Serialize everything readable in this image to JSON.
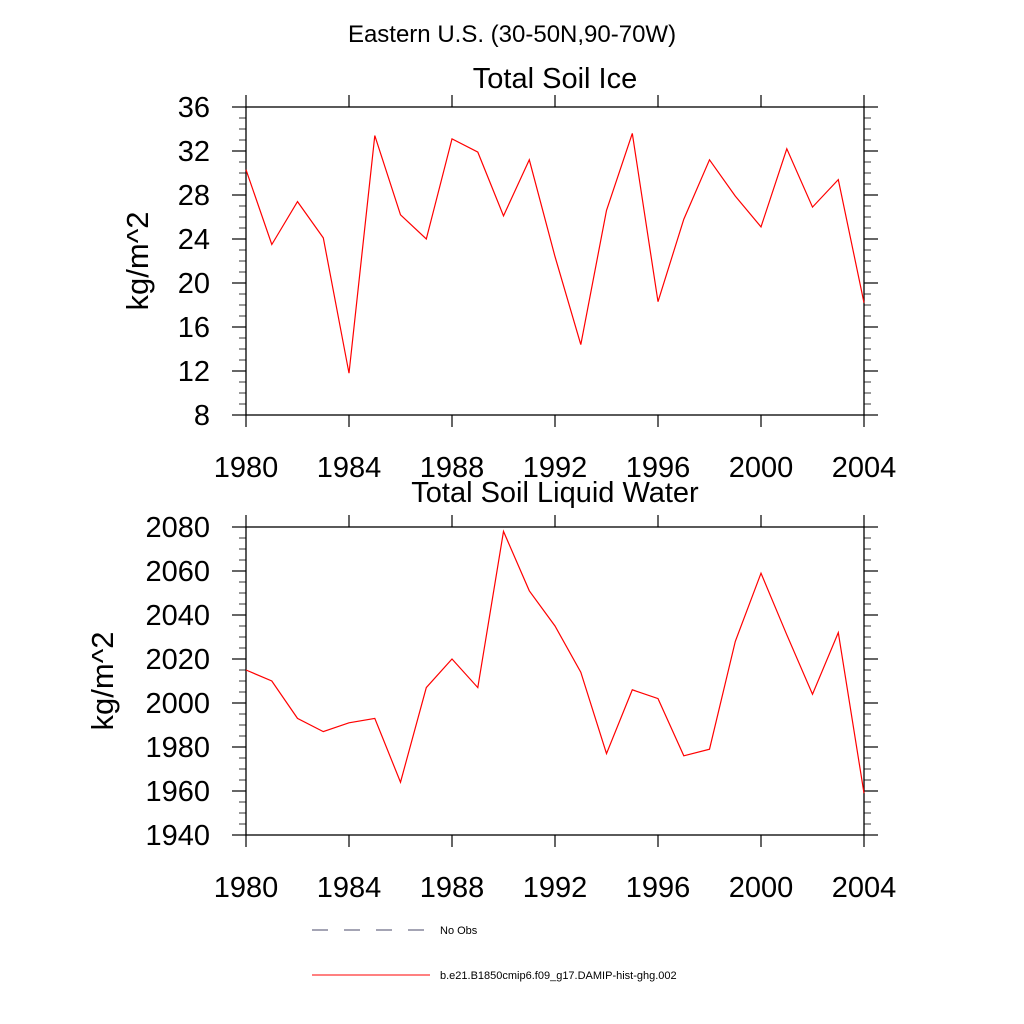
{
  "figure_title": "Eastern U.S. (30-50N,90-70W)",
  "legend": [
    {
      "label": "No Obs",
      "style": "dashed",
      "color": "#4a4a6a"
    },
    {
      "label": "b.e21.B1850cmip6.f09_g17.DAMIP-hist-ghg.002",
      "style": "solid",
      "color": "#ff0000"
    }
  ],
  "chart_data": [
    {
      "type": "line",
      "title": "Total Soil Ice",
      "xlabel": "",
      "ylabel": "kg/m^2",
      "xlim": [
        1980,
        2004
      ],
      "ylim": [
        8,
        36
      ],
      "x_ticks": [
        1980,
        1984,
        1988,
        1992,
        1996,
        2000,
        2004
      ],
      "y_ticks": [
        8,
        12,
        16,
        20,
        24,
        28,
        32,
        36
      ],
      "series": [
        {
          "color": "#ff0000",
          "x": [
            1980,
            1981,
            1982,
            1983,
            1984,
            1985,
            1986,
            1987,
            1988,
            1989,
            1990,
            1991,
            1992,
            1993,
            1994,
            1995,
            1996,
            1997,
            1998,
            1999,
            2000,
            2001,
            2002,
            2003,
            2004
          ],
          "values": [
            30.3,
            23.5,
            27.4,
            24.1,
            11.8,
            33.4,
            26.2,
            24.0,
            33.1,
            31.9,
            26.1,
            31.2,
            22.4,
            14.4,
            26.6,
            33.6,
            18.3,
            25.8,
            31.2,
            27.9,
            25.1,
            32.2,
            26.9,
            29.4,
            18.2
          ]
        }
      ]
    },
    {
      "type": "line",
      "title": "Total Soil Liquid Water",
      "xlabel": "",
      "ylabel": "kg/m^2",
      "xlim": [
        1980,
        2004
      ],
      "ylim": [
        1940,
        2080
      ],
      "x_ticks": [
        1980,
        1984,
        1988,
        1992,
        1996,
        2000,
        2004
      ],
      "y_ticks": [
        1940,
        1960,
        1980,
        2000,
        2020,
        2040,
        2060,
        2080
      ],
      "series": [
        {
          "color": "#ff0000",
          "x": [
            1980,
            1981,
            1982,
            1983,
            1984,
            1985,
            1986,
            1987,
            1988,
            1989,
            1990,
            1991,
            1992,
            1993,
            1994,
            1995,
            1996,
            1997,
            1998,
            1999,
            2000,
            2001,
            2002,
            2003,
            2004
          ],
          "values": [
            2015,
            2010,
            1993,
            1987,
            1991,
            1993,
            1964,
            2007,
            2020,
            2007,
            2078,
            2051,
            2035,
            2014,
            1977,
            2006,
            2002,
            1976,
            1979,
            2028,
            2059,
            2031,
            2004,
            2032,
            1959
          ]
        }
      ]
    }
  ]
}
